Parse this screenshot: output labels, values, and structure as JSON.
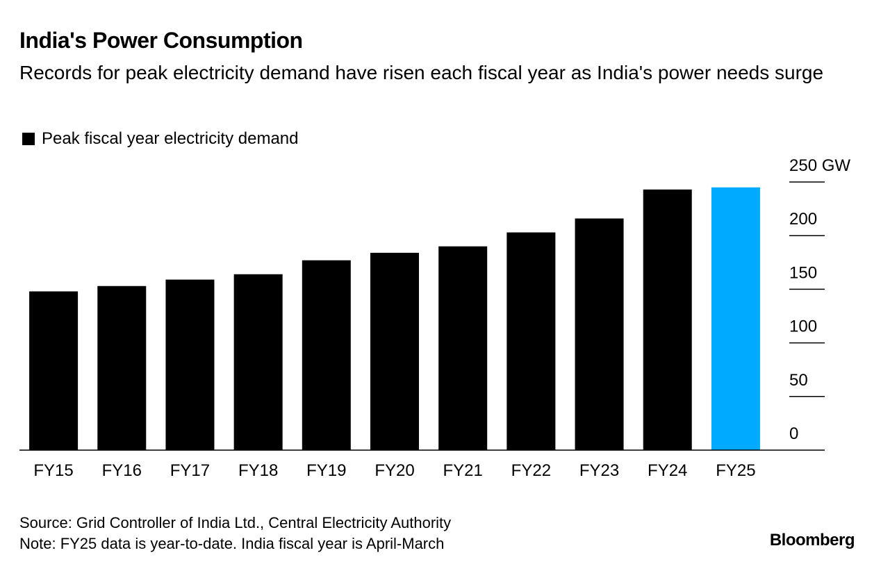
{
  "title": "India's Power Consumption",
  "subtitle": "Records for peak electricity demand have risen each fiscal year as India's power needs surge",
  "legend": {
    "label": "Peak fiscal year electricity demand",
    "color": "#000000"
  },
  "chart_data": {
    "type": "bar",
    "categories": [
      "FY15",
      "FY16",
      "FY17",
      "FY18",
      "FY19",
      "FY20",
      "FY21",
      "FY22",
      "FY23",
      "FY24",
      "FY25"
    ],
    "series": [
      {
        "name": "Peak fiscal year electricity demand",
        "values": [
          148,
          153,
          159,
          164,
          177,
          184,
          190,
          203,
          216,
          243,
          245
        ]
      }
    ],
    "highlight_index": 10,
    "bar_color": "#000000",
    "highlight_color": "#00aaff",
    "yticks": [
      "0",
      "50",
      "100",
      "150",
      "200",
      "250 GW"
    ],
    "ytick_values": [
      0,
      50,
      100,
      150,
      200,
      250
    ],
    "ylim": [
      0,
      250
    ],
    "y_axis_position": "right",
    "grid": false
  },
  "footer": {
    "source": "Source: Grid Controller of India Ltd., Central Electricity Authority",
    "note": "Note: FY25 data is year-to-date. India fiscal year is April-March"
  },
  "brand": "Bloomberg"
}
